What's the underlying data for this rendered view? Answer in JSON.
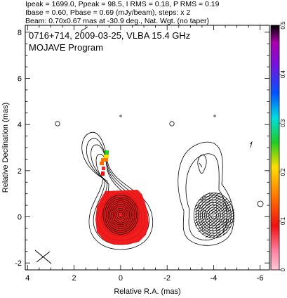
{
  "header": {
    "line1": "Ipeak = 1699.0, Ppeak = 98.5, I RMS = 0.18, P RMS = 0.19",
    "line2": "Ibase = 0.60, Pbase = 0.69 (mJy/beam), steps: x 2",
    "line3": "Beam: 0.70x0.67 mas at -30.9 deg., Nat. Wgt. (no taper)"
  },
  "plot_title": {
    "line1": "0716+714, 2009-03-25, VLBA 15.4 GHz",
    "line2": "MOJAVE Program"
  },
  "colors": {
    "frame": "#000000",
    "contour": "#000000",
    "core_polarization": "#ee1111",
    "colorbar_top": "#000000",
    "colorbar_bottom": "#ffc8d8"
  },
  "chart_data": {
    "type": "contour",
    "xlabel": "Relative R.A. (mas)",
    "ylabel": "Relative Declination (mas)",
    "xlim": [
      4.1,
      -6.4
    ],
    "ylim": [
      -2.3,
      8.3
    ],
    "x_ticks": [
      "4",
      "2",
      "0",
      "-2",
      "-4",
      "-6"
    ],
    "y_ticks": [
      "-2",
      "0",
      "2",
      "4",
      "6",
      "8"
    ],
    "colorbar": {
      "range": [
        0,
        0.5
      ],
      "ticks": [
        "0",
        "0.1",
        "0.2",
        "0.3",
        "0.4",
        "0.5"
      ]
    },
    "left_panel": {
      "center": [
        0,
        0
      ],
      "peak_total_intensity_mJy_beam": 1699.0,
      "peak_polarized_mJy_beam": 98.5,
      "contour_base_mJy_beam": 0.6,
      "contour_step_factor": 2,
      "polarization_patches": [
        {
          "x": 0,
          "y": 0,
          "fractional_pol": 0.11
        },
        {
          "x": 0.8,
          "y": 2.6,
          "fractional_pol": 0.3
        },
        {
          "x": 1.0,
          "y": 2.0,
          "fractional_pol": 0.1
        }
      ]
    },
    "right_panel": {
      "center": [
        -4.0,
        0
      ],
      "content": "total intensity contours with EVPA sticks"
    }
  }
}
